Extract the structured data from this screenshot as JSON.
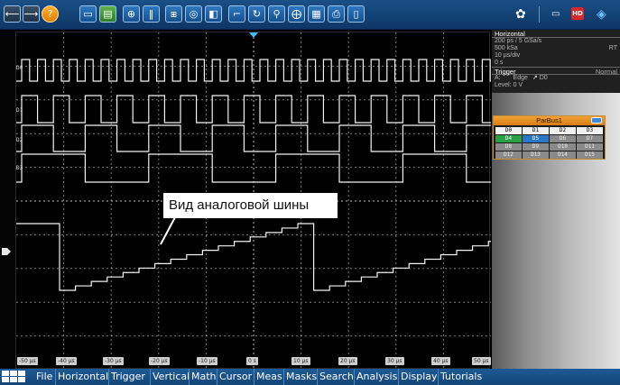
{
  "toolbar": {
    "buttons": [
      "back-icon",
      "forward-icon",
      "help-icon",
      "folder-icon",
      "save-icon",
      "zoom-icon",
      "cursor-icon",
      "measure-icon",
      "search-icon",
      "marker-icon",
      "trigger-icon",
      "time-icon",
      "probe-icon",
      "math-icon",
      "fft-icon",
      "print-icon",
      "delete-icon"
    ],
    "right": [
      "settings-icon",
      "keyboard-icon",
      "hd-icon",
      "logo-icon"
    ]
  },
  "horizontal": {
    "header": "Horizontal",
    "resolution": "200 ps / 5 GSa/s",
    "record": "500 kSa",
    "mode": "RT",
    "scale": "10 µs/div",
    "position": "0 s"
  },
  "trigger": {
    "header": "Trigger",
    "mode": "Normal",
    "source_prefix": "A:",
    "type": "Edge",
    "source": "D0",
    "level": "Level: 0 V"
  },
  "parbus": {
    "title": "ParBus1",
    "rows": [
      [
        "D0",
        "D1",
        "D2",
        "D3"
      ],
      [
        "D4",
        "D5",
        "D6",
        "D7"
      ],
      [
        "D8",
        "D9",
        "D10",
        "D11"
      ],
      [
        "D12",
        "D13",
        "D14",
        "D15"
      ]
    ]
  },
  "channels": [
    "D0",
    "D1",
    "D2",
    "D3"
  ],
  "ticks": [
    "-50 µs",
    "-40 µs",
    "-30 µs",
    "-20 µs",
    "-10 µs",
    "0 s",
    "10 µs",
    "20 µs",
    "30 µs",
    "40 µs",
    "50 µs"
  ],
  "callout": "Вид аналоговой шины",
  "menu": [
    "File",
    "Horizontal",
    "Trigger",
    "Vertical",
    "Math",
    "Cursor",
    "Meas",
    "Masks",
    "Search",
    "Analysis",
    "Display",
    "Tutorials"
  ]
}
